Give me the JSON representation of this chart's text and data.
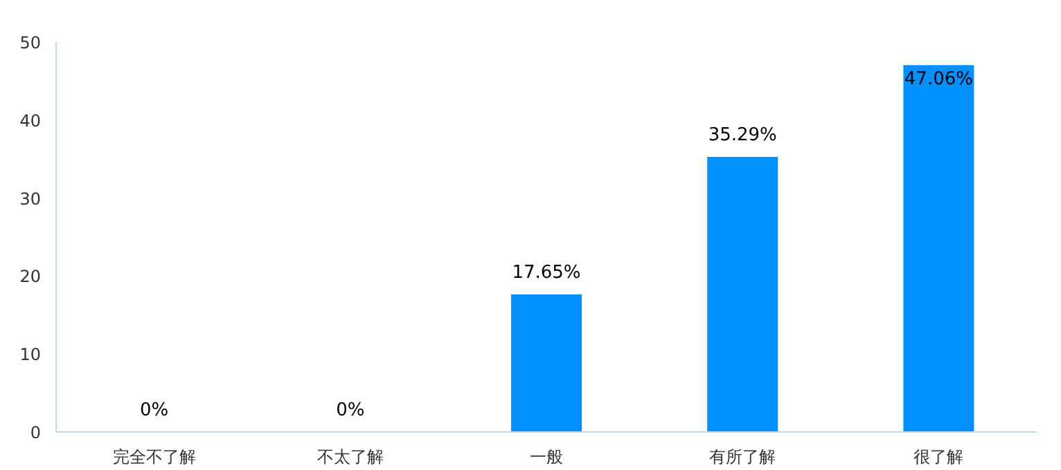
{
  "chart_data": {
    "type": "bar",
    "categories": [
      "完全不了解",
      "不太了解",
      "一般",
      "有所了解",
      "很了解"
    ],
    "values": [
      0,
      0,
      17.65,
      35.29,
      47.06
    ],
    "value_labels": [
      "0%",
      "0%",
      "17.65%",
      "35.29%",
      "47.06%"
    ],
    "color": "#0090ff",
    "ylim": [
      0,
      50
    ],
    "yticks": [
      0,
      10,
      20,
      30,
      40,
      50
    ],
    "grid": false
  }
}
